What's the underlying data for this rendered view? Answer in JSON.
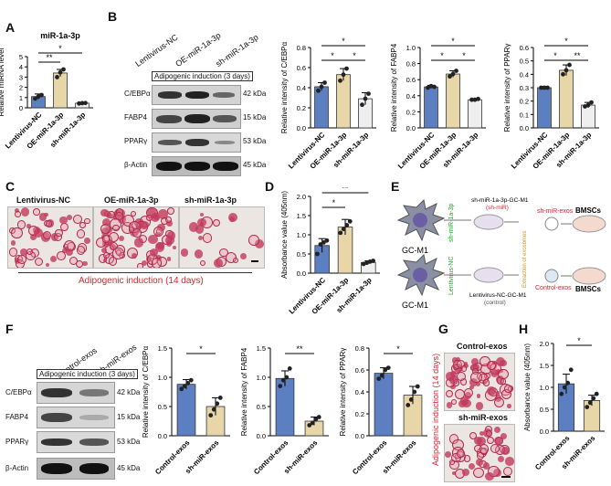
{
  "panels": {
    "A": "A",
    "B": "B",
    "C": "C",
    "D": "D",
    "E": "E",
    "F": "F",
    "G": "G",
    "H": "H"
  },
  "colors": {
    "nc": "#5b7fc0",
    "oe": "#e6d6a8",
    "sh": "#efefef",
    "ctrl": "#5b7fc0",
    "shexo": "#e6d6a8",
    "mic_red": "#c23a5c",
    "red_text": "#e0212d",
    "green_text": "#2aa02a"
  },
  "A": {
    "title": "miR-1a-3p",
    "ylabel": "Relative miRNA level",
    "sig": [
      "**",
      "*"
    ]
  },
  "B": {
    "header": "Adipogenic induction (3 days)",
    "columns": [
      "Lentivirus-NC",
      "OE-miR-1a-3p",
      "sh-miR-1a-3p"
    ],
    "rows": [
      {
        "name": "C/EBPα",
        "kda": "42 kDa"
      },
      {
        "name": "FABP4",
        "kda": "15 kDa"
      },
      {
        "name": "PPARγ",
        "kda": "53 kDa"
      },
      {
        "name": "β-Actin",
        "kda": "45 kDa"
      }
    ]
  },
  "C": {
    "labels": [
      "Lentivirus-NC",
      "OE-miR-1a-3p",
      "sh-miR-1a-3p"
    ],
    "caption": "Adipogenic induction (14 days)"
  },
  "D": {
    "ylabel": "Absorbance value (405nm)",
    "sig": [
      "**",
      "*"
    ]
  },
  "E": {
    "cell_top": "GC-M1",
    "cell_bot": "GC-M1",
    "vec_top": "sh-miR-1a-3p",
    "vec_bot": "Lentivirus-NC",
    "top_label": "sh-miR-1a-3p-GC-M1",
    "top_sub": "(sh-miR)",
    "bot_label": "Lentivirus-NC-GC-M1",
    "bot_sub": "(control)",
    "extraction": "Extraction of exosomes",
    "exo_top": "sh-miR-exos",
    "exo_bot": "Control-exos",
    "target_top": "BMSCs",
    "target_bot": "BMSCs"
  },
  "F": {
    "header": "Adipogenic induction (3 days)",
    "columns": [
      "Control-exos",
      "sh-miR-exos"
    ],
    "rows": [
      {
        "name": "C/EBPα",
        "kda": "42 kDa"
      },
      {
        "name": "FABP4",
        "kda": "15 kDa"
      },
      {
        "name": "PPARγ",
        "kda": "53 kDa"
      },
      {
        "name": "β-Actin",
        "kda": "45 kDa"
      }
    ]
  },
  "G": {
    "side": "Adipogenic induction (14 days)",
    "top": "Control-exos",
    "bot": "sh-miR-exos"
  },
  "H": {
    "ylabel": "Absorbance value (405nm)",
    "sig": "*"
  },
  "chart_data": [
    {
      "id": "A",
      "type": "bar",
      "title": "miR-1a-3p",
      "ylabel": "Relative miRNA level",
      "categories": [
        "Lentivirus-NC",
        "OE-miR-1a-3p",
        "sh-miR-1a-3p"
      ],
      "values": [
        1.1,
        3.4,
        0.45
      ],
      "errors": [
        0.25,
        0.35,
        0.05
      ],
      "ylim": [
        0,
        5
      ],
      "yticks": [
        0,
        1,
        2,
        3,
        4,
        5
      ],
      "points": [
        [
          0.9,
          1.1,
          1.25
        ],
        [
          3.0,
          3.45,
          3.75
        ],
        [
          0.42,
          0.45,
          0.47
        ]
      ]
    },
    {
      "id": "B1",
      "type": "bar",
      "ylabel": "Relative intensity of C/EBPα",
      "categories": [
        "Lentivirus-NC",
        "OE-miR-1a-3p",
        "sh-miR-1a-3p"
      ],
      "values": [
        0.41,
        0.53,
        0.29
      ],
      "errors": [
        0.04,
        0.06,
        0.06
      ],
      "ylim": [
        0,
        0.8
      ],
      "yticks": [
        0,
        0.2,
        0.4,
        0.6,
        0.8
      ],
      "points": [
        [
          0.37,
          0.41,
          0.45
        ],
        [
          0.47,
          0.53,
          0.59
        ],
        [
          0.23,
          0.29,
          0.34
        ]
      ]
    },
    {
      "id": "B2",
      "type": "bar",
      "ylabel": "Relative intensity of FABP4",
      "categories": [
        "Lentivirus-NC",
        "OE-miR-1a-3p",
        "sh-miR-1a-3p"
      ],
      "values": [
        0.51,
        0.67,
        0.35
      ],
      "errors": [
        0.02,
        0.04,
        0.01
      ],
      "ylim": [
        0,
        1.0
      ],
      "yticks": [
        0,
        0.2,
        0.4,
        0.6,
        0.8,
        1.0
      ],
      "points": [
        [
          0.5,
          0.52,
          0.51
        ],
        [
          0.64,
          0.67,
          0.71
        ],
        [
          0.35,
          0.35,
          0.36
        ]
      ]
    },
    {
      "id": "B3",
      "type": "bar",
      "ylabel": "Relative intensity of PPARγ",
      "categories": [
        "Lentivirus-NC",
        "OE-miR-1a-3p",
        "sh-miR-1a-3p"
      ],
      "values": [
        0.3,
        0.43,
        0.17
      ],
      "errors": [
        0.01,
        0.04,
        0.02
      ],
      "ylim": [
        0,
        0.6
      ],
      "yticks": [
        0,
        0.1,
        0.2,
        0.3,
        0.4,
        0.5,
        0.6
      ],
      "points": [
        [
          0.3,
          0.3,
          0.3
        ],
        [
          0.4,
          0.43,
          0.47
        ],
        [
          0.16,
          0.17,
          0.19
        ]
      ]
    },
    {
      "id": "D",
      "type": "bar",
      "ylabel": "Absorbance value (405nm)",
      "categories": [
        "Lentivirus-NC",
        "OE-miR-1a-3p",
        "sh-miR-1a-3p"
      ],
      "values": [
        0.72,
        1.2,
        0.28
      ],
      "errors": [
        0.18,
        0.2,
        0.04
      ],
      "ylim": [
        0,
        2.0
      ],
      "yticks": [
        0,
        0.5,
        1.0,
        1.5,
        2.0
      ],
      "points": [
        [
          0.5,
          0.75,
          0.8,
          0.85
        ],
        [
          1.05,
          1.15,
          1.25,
          1.35
        ],
        [
          0.24,
          0.27,
          0.3,
          0.32
        ]
      ]
    },
    {
      "id": "F1",
      "type": "bar",
      "ylabel": "Relative intensity of C/EBPα",
      "categories": [
        "Control-exos",
        "sh-miR-exos"
      ],
      "values": [
        0.88,
        0.5
      ],
      "errors": [
        0.08,
        0.15
      ],
      "ylim": [
        0,
        1.5
      ],
      "yticks": [
        0,
        0.5,
        1.0,
        1.5
      ],
      "points": [
        [
          0.8,
          0.85,
          0.9,
          0.95
        ],
        [
          0.35,
          0.45,
          0.55,
          0.65
        ]
      ]
    },
    {
      "id": "F2",
      "type": "bar",
      "ylabel": "Relative intensity of FABP4",
      "categories": [
        "Control-exos",
        "sh-miR-exos"
      ],
      "values": [
        0.98,
        0.25
      ],
      "errors": [
        0.13,
        0.07
      ],
      "ylim": [
        0,
        1.5
      ],
      "yticks": [
        0,
        0.5,
        1.0,
        1.5
      ],
      "points": [
        [
          0.85,
          0.95,
          1.0,
          1.15
        ],
        [
          0.18,
          0.22,
          0.28,
          0.32
        ]
      ]
    },
    {
      "id": "F3",
      "type": "bar",
      "ylabel": "Relative intensity of PPARγ",
      "categories": [
        "Control-exos",
        "sh-miR-exos"
      ],
      "values": [
        0.57,
        0.37
      ],
      "errors": [
        0.05,
        0.08
      ],
      "ylim": [
        0,
        0.8
      ],
      "yticks": [
        0,
        0.2,
        0.4,
        0.6,
        0.8
      ],
      "points": [
        [
          0.52,
          0.55,
          0.6,
          0.62
        ],
        [
          0.28,
          0.33,
          0.4,
          0.45
        ]
      ]
    },
    {
      "id": "H",
      "type": "bar",
      "ylabel": "Absorbance value (405nm)",
      "categories": [
        "Control-exos",
        "sh-miR-exos"
      ],
      "values": [
        1.08,
        0.7
      ],
      "errors": [
        0.22,
        0.12
      ],
      "ylim": [
        0,
        2.0
      ],
      "yticks": [
        0,
        0.5,
        1.0,
        1.5,
        2.0
      ],
      "points": [
        [
          0.85,
          1.0,
          1.1,
          1.4
        ],
        [
          0.55,
          0.65,
          0.75,
          0.85
        ]
      ]
    }
  ]
}
